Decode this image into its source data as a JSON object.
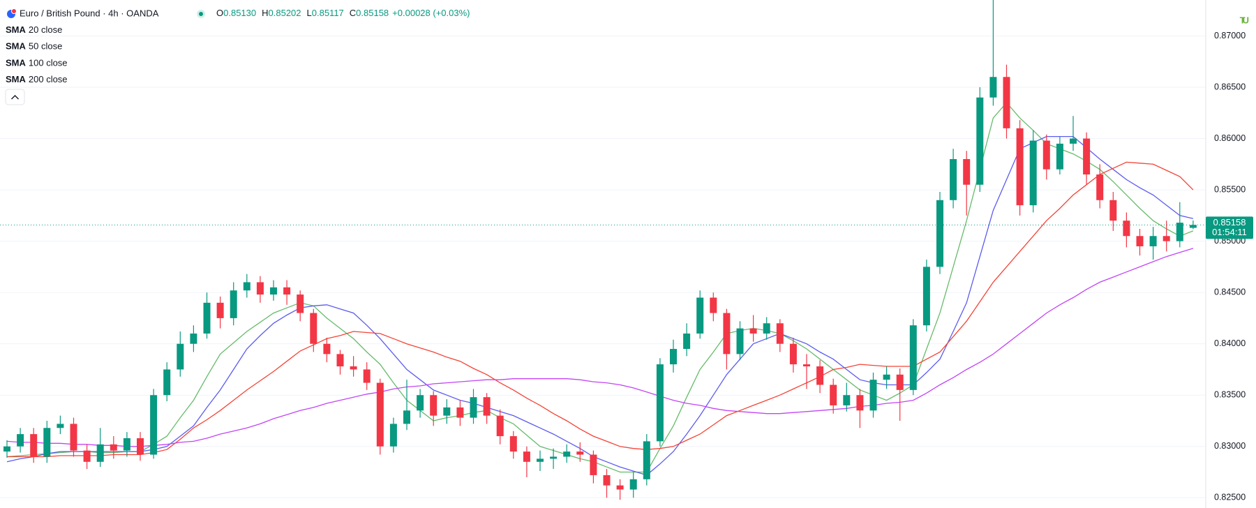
{
  "chart_data": {
    "type": "candlestick",
    "title": "Euro / British Pound · 4h · OANDA",
    "ohlc": {
      "labels": [
        "O",
        "H",
        "L",
        "C"
      ],
      "values": [
        0.8513,
        0.85202,
        0.85117,
        0.85158
      ],
      "value_labels": [
        "0.85130",
        "0.85202",
        "0.85117",
        "0.85158"
      ]
    },
    "change": "+0.00028 (+0.03%)",
    "last_price": {
      "value": 0.85158,
      "label": "0.85158",
      "countdown": "01:54:11"
    },
    "logo": "TU",
    "up_color": "#089981",
    "down_color": "#f23645",
    "open": [
      0.8295,
      0.83,
      0.8312,
      0.829,
      0.8318,
      0.8322,
      0.8296,
      0.8285,
      0.8302,
      0.8296,
      0.8308,
      0.8292,
      0.835,
      0.8375,
      0.84,
      0.841,
      0.844,
      0.8425,
      0.8452,
      0.846,
      0.8448,
      0.8455,
      0.8448,
      0.843,
      0.84,
      0.839,
      0.8378,
      0.8375,
      0.8362,
      0.83,
      0.8322,
      0.8335,
      0.835,
      0.833,
      0.8338,
      0.8328,
      0.8348,
      0.833,
      0.831,
      0.8295,
      0.8285,
      0.8288,
      0.829,
      0.8295,
      0.8292,
      0.8272,
      0.8262,
      0.8258,
      0.8268,
      0.8305,
      0.838,
      0.8395,
      0.841,
      0.8445,
      0.843,
      0.839,
      0.8415,
      0.841,
      0.842,
      0.84,
      0.838,
      0.8378,
      0.836,
      0.834,
      0.835,
      0.8335,
      0.8365,
      0.837,
      0.8355,
      0.8418,
      0.8475,
      0.854,
      0.858,
      0.8555,
      0.864,
      0.866,
      0.861,
      0.8535,
      0.8598,
      0.857,
      0.8595,
      0.86,
      0.8565,
      0.854,
      0.852,
      0.8505,
      0.8495,
      0.8505,
      0.85,
      0.8513
    ],
    "high": [
      0.8306,
      0.8318,
      0.8318,
      0.8325,
      0.833,
      0.8328,
      0.8302,
      0.8318,
      0.831,
      0.8314,
      0.8314,
      0.8356,
      0.8382,
      0.8412,
      0.8418,
      0.845,
      0.8446,
      0.846,
      0.8468,
      0.8466,
      0.8462,
      0.8462,
      0.8452,
      0.8434,
      0.8406,
      0.8394,
      0.8388,
      0.8382,
      0.8366,
      0.8328,
      0.8365,
      0.8356,
      0.8354,
      0.8346,
      0.8345,
      0.8356,
      0.8352,
      0.8336,
      0.8315,
      0.83,
      0.8296,
      0.8298,
      0.8302,
      0.8304,
      0.8296,
      0.8278,
      0.8268,
      0.8275,
      0.8312,
      0.8386,
      0.8404,
      0.842,
      0.8452,
      0.845,
      0.8434,
      0.8422,
      0.8428,
      0.8426,
      0.8424,
      0.8406,
      0.839,
      0.8384,
      0.8366,
      0.8362,
      0.8356,
      0.8372,
      0.8378,
      0.8376,
      0.8424,
      0.8482,
      0.8548,
      0.859,
      0.8588,
      0.865,
      0.8735,
      0.8672,
      0.8618,
      0.8608,
      0.8604,
      0.8602,
      0.8622,
      0.8606,
      0.8575,
      0.8548,
      0.8528,
      0.8512,
      0.8514,
      0.852,
      0.8538,
      0.85202
    ],
    "low": [
      0.8289,
      0.8294,
      0.8284,
      0.8284,
      0.8312,
      0.829,
      0.8278,
      0.828,
      0.8288,
      0.829,
      0.8286,
      0.8288,
      0.8344,
      0.8368,
      0.8392,
      0.8405,
      0.8415,
      0.8418,
      0.8445,
      0.844,
      0.8442,
      0.8438,
      0.8422,
      0.8392,
      0.8382,
      0.837,
      0.8368,
      0.8355,
      0.8292,
      0.8294,
      0.8316,
      0.8328,
      0.832,
      0.8322,
      0.832,
      0.8322,
      0.8322,
      0.8302,
      0.8288,
      0.827,
      0.8276,
      0.8278,
      0.8284,
      0.8285,
      0.8264,
      0.825,
      0.8248,
      0.825,
      0.8262,
      0.83,
      0.8372,
      0.8388,
      0.8405,
      0.8422,
      0.8375,
      0.8384,
      0.8402,
      0.8404,
      0.8392,
      0.8372,
      0.8356,
      0.8352,
      0.8332,
      0.8334,
      0.8318,
      0.8328,
      0.8356,
      0.8325,
      0.835,
      0.8412,
      0.8468,
      0.8532,
      0.8525,
      0.8548,
      0.8632,
      0.86,
      0.8525,
      0.8528,
      0.856,
      0.8565,
      0.8588,
      0.8555,
      0.8532,
      0.851,
      0.8494,
      0.8486,
      0.8482,
      0.849,
      0.8494,
      0.85117
    ],
    "close": [
      0.83,
      0.8312,
      0.829,
      0.8318,
      0.8322,
      0.8296,
      0.8285,
      0.8302,
      0.8296,
      0.8308,
      0.8292,
      0.835,
      0.8375,
      0.84,
      0.841,
      0.844,
      0.8425,
      0.8452,
      0.846,
      0.8448,
      0.8455,
      0.8448,
      0.843,
      0.84,
      0.839,
      0.8378,
      0.8375,
      0.8362,
      0.83,
      0.8322,
      0.8335,
      0.835,
      0.833,
      0.8338,
      0.8328,
      0.8348,
      0.833,
      0.831,
      0.8295,
      0.8285,
      0.8288,
      0.829,
      0.8295,
      0.8292,
      0.8272,
      0.8262,
      0.8258,
      0.8268,
      0.8305,
      0.838,
      0.8395,
      0.841,
      0.8445,
      0.843,
      0.839,
      0.8415,
      0.841,
      0.842,
      0.84,
      0.838,
      0.8378,
      0.836,
      0.834,
      0.835,
      0.8335,
      0.8365,
      0.837,
      0.8355,
      0.8418,
      0.8475,
      0.854,
      0.858,
      0.8555,
      0.864,
      0.866,
      0.861,
      0.8535,
      0.8598,
      0.857,
      0.8595,
      0.86,
      0.8565,
      0.854,
      0.852,
      0.8505,
      0.8495,
      0.8505,
      0.85,
      0.8518,
      0.85158
    ],
    "series": [
      {
        "name": "SMA",
        "params": "20 close",
        "color": "#66bb6a",
        "values": [
          0.829,
          0.8291,
          0.8292,
          0.8293,
          0.8294,
          0.8295,
          0.8295,
          0.8294,
          0.8294,
          0.8295,
          0.8295,
          0.8302,
          0.831,
          0.8328,
          0.8345,
          0.8368,
          0.839,
          0.8401,
          0.8412,
          0.8421,
          0.843,
          0.8435,
          0.844,
          0.8437,
          0.8425,
          0.8415,
          0.8405,
          0.8392,
          0.838,
          0.8362,
          0.8345,
          0.8335,
          0.8325,
          0.8328,
          0.833,
          0.8333,
          0.8335,
          0.8328,
          0.8322,
          0.8311,
          0.83,
          0.8296,
          0.8292,
          0.8288,
          0.8285,
          0.828,
          0.8275,
          0.8275,
          0.8275,
          0.8298,
          0.832,
          0.8348,
          0.8375,
          0.8392,
          0.841,
          0.8413,
          0.8415,
          0.8413,
          0.841,
          0.8403,
          0.8395,
          0.8385,
          0.8375,
          0.8365,
          0.8355,
          0.835,
          0.8345,
          0.8352,
          0.836,
          0.8395,
          0.843,
          0.8475,
          0.852,
          0.857,
          0.862,
          0.8635,
          0.862,
          0.8608,
          0.8595,
          0.859,
          0.8585,
          0.8578,
          0.857,
          0.8558,
          0.8545,
          0.8532,
          0.852,
          0.8512,
          0.8505,
          0.851
        ]
      },
      {
        "name": "SMA",
        "params": "50 close",
        "color": "#5b5bf0",
        "values": [
          0.8285,
          0.8288,
          0.829,
          0.8293,
          0.8295,
          0.8295,
          0.8295,
          0.8295,
          0.8295,
          0.8295,
          0.8295,
          0.8297,
          0.83,
          0.831,
          0.832,
          0.8338,
          0.8355,
          0.8375,
          0.8395,
          0.8408,
          0.842,
          0.8428,
          0.8435,
          0.8437,
          0.8438,
          0.8434,
          0.843,
          0.8418,
          0.8405,
          0.839,
          0.8375,
          0.8365,
          0.8355,
          0.835,
          0.8345,
          0.8342,
          0.8338,
          0.8334,
          0.833,
          0.8324,
          0.8318,
          0.8312,
          0.8305,
          0.8298,
          0.829,
          0.8285,
          0.828,
          0.8276,
          0.8272,
          0.8283,
          0.8295,
          0.8312,
          0.833,
          0.835,
          0.837,
          0.8385,
          0.84,
          0.8405,
          0.841,
          0.8405,
          0.84,
          0.8392,
          0.8385,
          0.8375,
          0.8365,
          0.8362,
          0.836,
          0.836,
          0.836,
          0.8372,
          0.8385,
          0.8412,
          0.844,
          0.8485,
          0.853,
          0.856,
          0.859,
          0.8596,
          0.8602,
          0.8602,
          0.8602,
          0.8591,
          0.858,
          0.857,
          0.856,
          0.8552,
          0.8545,
          0.8535,
          0.8525,
          0.8522
        ]
      },
      {
        "name": "SMA",
        "params": "100 close",
        "color": "#f44336",
        "values": [
          0.829,
          0.829,
          0.829,
          0.829,
          0.8291,
          0.8291,
          0.8291,
          0.8291,
          0.8292,
          0.8292,
          0.8292,
          0.8294,
          0.8297,
          0.8307,
          0.8318,
          0.8326,
          0.8335,
          0.8345,
          0.8355,
          0.8364,
          0.8373,
          0.8383,
          0.8393,
          0.8399,
          0.8405,
          0.8408,
          0.8412,
          0.8411,
          0.841,
          0.8405,
          0.84,
          0.8396,
          0.8392,
          0.8387,
          0.8383,
          0.8376,
          0.837,
          0.8362,
          0.8355,
          0.8347,
          0.834,
          0.8332,
          0.8325,
          0.8317,
          0.831,
          0.8305,
          0.83,
          0.8298,
          0.8297,
          0.8298,
          0.83,
          0.8306,
          0.8312,
          0.8321,
          0.833,
          0.8335,
          0.834,
          0.8345,
          0.835,
          0.8356,
          0.8362,
          0.8368,
          0.8375,
          0.8377,
          0.838,
          0.8379,
          0.8378,
          0.8378,
          0.8378,
          0.8385,
          0.8392,
          0.8407,
          0.8422,
          0.8441,
          0.846,
          0.8475,
          0.849,
          0.8505,
          0.852,
          0.8532,
          0.8545,
          0.8555,
          0.8565,
          0.8571,
          0.8577,
          0.8576,
          0.8575,
          0.8569,
          0.8563,
          0.855
        ]
      },
      {
        "name": "SMA",
        "params": "200 close",
        "color": "#c344f5",
        "values": [
          0.8305,
          0.8304,
          0.8304,
          0.8303,
          0.8303,
          0.8302,
          0.8302,
          0.8301,
          0.8301,
          0.83,
          0.83,
          0.8301,
          0.8302,
          0.8304,
          0.8305,
          0.8308,
          0.8312,
          0.8315,
          0.8318,
          0.8322,
          0.8327,
          0.8331,
          0.8335,
          0.8338,
          0.8342,
          0.8345,
          0.8348,
          0.8351,
          0.8353,
          0.8356,
          0.8358,
          0.8359,
          0.8361,
          0.8362,
          0.8363,
          0.8364,
          0.8365,
          0.8365,
          0.8366,
          0.8366,
          0.8366,
          0.8366,
          0.8366,
          0.8365,
          0.8363,
          0.8362,
          0.836,
          0.8357,
          0.8353,
          0.8349,
          0.8345,
          0.8342,
          0.834,
          0.8337,
          0.8335,
          0.8334,
          0.8333,
          0.8332,
          0.8332,
          0.8333,
          0.8334,
          0.8335,
          0.8336,
          0.8337,
          0.8339,
          0.834,
          0.8342,
          0.8343,
          0.8345,
          0.8352,
          0.836,
          0.8367,
          0.8375,
          0.8382,
          0.839,
          0.84,
          0.841,
          0.842,
          0.843,
          0.8438,
          0.8445,
          0.8453,
          0.846,
          0.8465,
          0.847,
          0.8475,
          0.848,
          0.8485,
          0.8489,
          0.8493
        ]
      }
    ],
    "ylim": [
      0.824,
      0.8735
    ],
    "yticks": [
      {
        "value": 0.825,
        "label": "0.82500"
      },
      {
        "value": 0.83,
        "label": "0.83000"
      },
      {
        "value": 0.835,
        "label": "0.83500"
      },
      {
        "value": 0.84,
        "label": "0.84000"
      },
      {
        "value": 0.845,
        "label": "0.84500"
      },
      {
        "value": 0.85,
        "label": "0.85000"
      },
      {
        "value": 0.855,
        "label": "0.85500"
      },
      {
        "value": 0.86,
        "label": "0.86000"
      },
      {
        "value": 0.865,
        "label": "0.86500"
      },
      {
        "value": 0.87,
        "label": "0.87000"
      }
    ],
    "grid": true
  }
}
